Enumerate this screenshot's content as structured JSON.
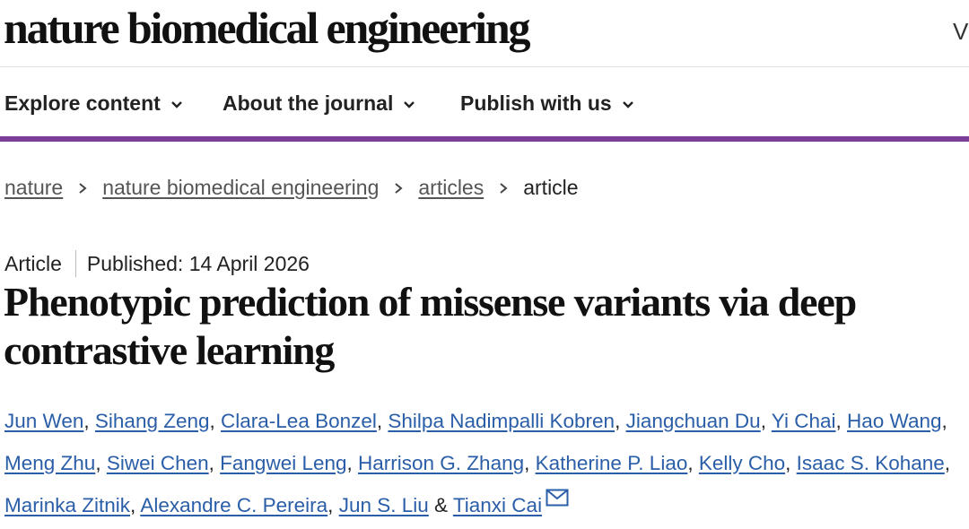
{
  "header": {
    "logo_text": "nature biomedical engineering",
    "cut_text": "V"
  },
  "nav": {
    "items": [
      {
        "label": "Explore content",
        "icon": "chevron-down-icon"
      },
      {
        "label": "About the journal",
        "icon": "chevron-down-icon"
      },
      {
        "label": "Publish with us",
        "icon": "chevron-down-icon"
      }
    ],
    "accent_color": "#7b3f98"
  },
  "breadcrumb": {
    "items": [
      "nature",
      "nature biomedical engineering",
      "articles"
    ],
    "current": "article"
  },
  "article": {
    "type": "Article",
    "published": "Published: 14 April 2026",
    "title": "Phenotypic prediction of missense variants via deep contrastive learning",
    "authors": [
      "Jun Wen",
      "Sihang Zeng",
      "Clara-Lea Bonzel",
      "Shilpa Nadimpalli Kobren",
      "Jiangchuan Du",
      "Yi Chai",
      "Hao Wang",
      "Meng Zhu",
      "Siwei Chen",
      "Fangwei Leng",
      "Harrison G. Zhang",
      "Katherine P. Liao",
      "Kelly Cho",
      "Isaac S. Kohane",
      "Marinka Zitnik",
      "Alexandre C. Pereira",
      "Jun S. Liu",
      "Tianxi Cai"
    ],
    "author_separator": ", ",
    "last_separator": " & ",
    "corresponding_icon": "mail-icon",
    "link_color": "#2b5ea8"
  }
}
